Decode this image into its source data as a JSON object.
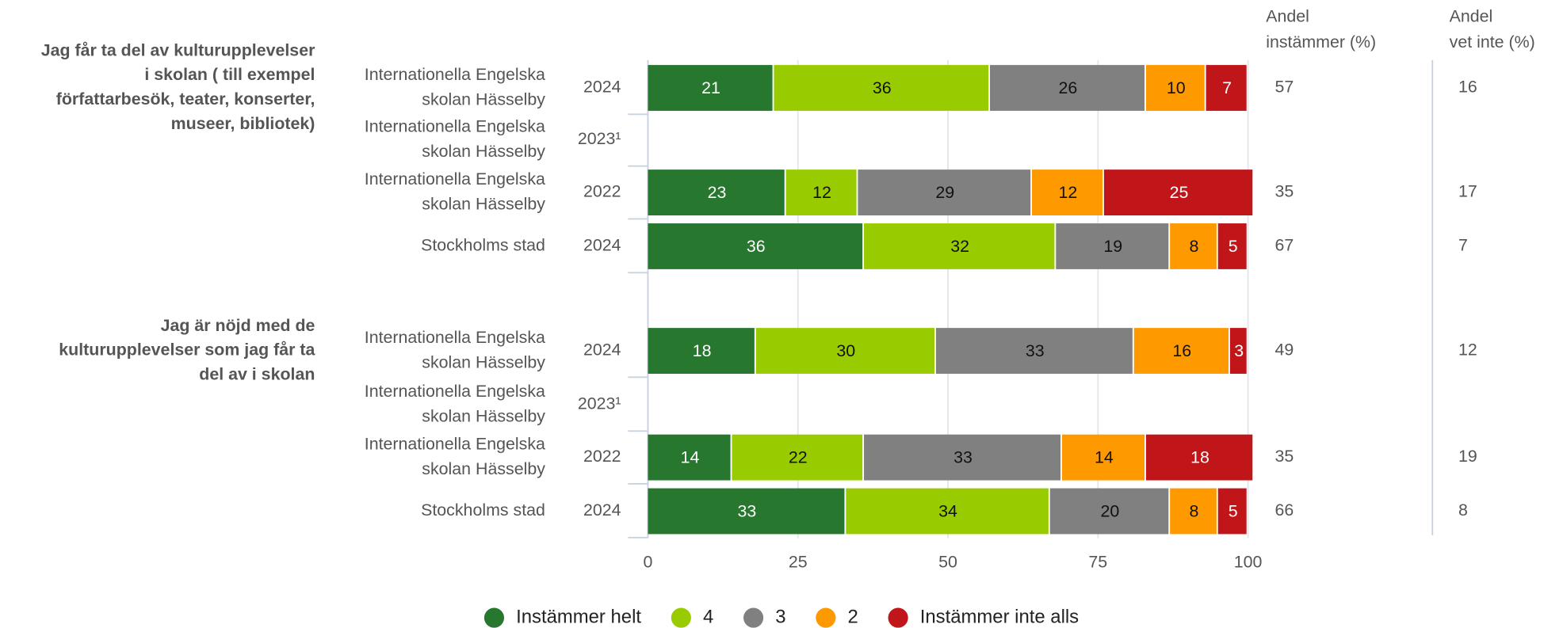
{
  "chart_data": {
    "type": "bar",
    "orientation": "horizontal",
    "stacked": true,
    "questions": [
      {
        "lines": [
          "Jag får ta del av kulturupplevelser",
          "i skolan ( till exempel",
          "författarbesök, teater, konserter,",
          "museer, bibliotek)"
        ]
      },
      {
        "lines": [
          "Jag är nöjd med de",
          "kulturupplevelser som jag får ta",
          "del av i skolan"
        ]
      }
    ],
    "rows": [
      {
        "entity": [
          "Internationella Engelska",
          "skolan Hässelby"
        ],
        "year": "2024"
      },
      {
        "entity": [
          "Internationella Engelska",
          "skolan Hässelby"
        ],
        "year": "2023¹"
      },
      {
        "entity": [
          "Internationella Engelska",
          "skolan Hässelby"
        ],
        "year": "2022"
      },
      {
        "entity": [
          "Stockholms stad"
        ],
        "year": "2024"
      },
      {
        "entity": [
          "Internationella Engelska",
          "skolan Hässelby"
        ],
        "year": "2024"
      },
      {
        "entity": [
          "Internationella Engelska",
          "skolan Hässelby"
        ],
        "year": "2023¹"
      },
      {
        "entity": [
          "Internationella Engelska",
          "skolan Hässelby"
        ],
        "year": "2022"
      },
      {
        "entity": [
          "Stockholms stad"
        ],
        "year": "2024"
      }
    ],
    "series": [
      {
        "name": "Instämmer helt",
        "color": "#27772f",
        "label_color": "#ffffff",
        "values": [
          21,
          null,
          23,
          36,
          18,
          null,
          14,
          33
        ]
      },
      {
        "name": "4",
        "color": "#99cc00",
        "label_color": "#111111",
        "values": [
          36,
          null,
          12,
          32,
          30,
          null,
          22,
          34
        ]
      },
      {
        "name": "3",
        "color": "#808080",
        "label_color": "#111111",
        "values": [
          26,
          null,
          29,
          19,
          33,
          null,
          33,
          20
        ]
      },
      {
        "name": "2",
        "color": "#ff9900",
        "label_color": "#111111",
        "values": [
          10,
          null,
          12,
          8,
          16,
          null,
          14,
          8
        ]
      },
      {
        "name": "Instämmer inte alls",
        "color": "#c0161a",
        "label_color": "#ffffff",
        "values": [
          7,
          null,
          25,
          5,
          3,
          null,
          18,
          5
        ]
      }
    ],
    "columns": [
      {
        "header": [
          "Andel",
          "instämmer (%)"
        ],
        "values": [
          57,
          null,
          35,
          67,
          49,
          null,
          35,
          66
        ]
      },
      {
        "header": [
          "Andel",
          "vet inte (%)"
        ],
        "values": [
          16,
          null,
          17,
          7,
          12,
          null,
          19,
          8
        ]
      }
    ],
    "xlim": [
      0,
      100
    ],
    "xticks": [
      0,
      25,
      50,
      75,
      100
    ],
    "grid": true,
    "legend": "bottom"
  }
}
